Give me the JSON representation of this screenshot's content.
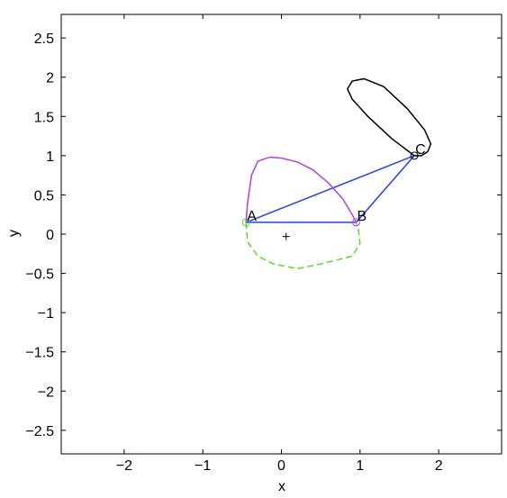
{
  "chart_data": {
    "type": "line",
    "xlabel": "x",
    "ylabel": "y",
    "xlim": [
      -2.8,
      2.8
    ],
    "ylim": [
      -2.8,
      2.8
    ],
    "xticks": [
      {
        "value": -2,
        "label": "−2"
      },
      {
        "value": -1,
        "label": "−1"
      },
      0,
      1,
      2
    ],
    "yticks": [
      {
        "value": -2.5,
        "label": "−2.5"
      },
      {
        "value": -2,
        "label": "−2"
      },
      {
        "value": -1.5,
        "label": "−1.5"
      },
      {
        "value": -1,
        "label": "−1"
      },
      {
        "value": -0.5,
        "label": "−0.5"
      },
      0,
      0.5,
      1,
      1.5,
      2,
      2.5
    ],
    "grid": false,
    "series": [
      {
        "color": "#1f3fff",
        "dash": "solid",
        "x": [
          -0.45,
          0.95,
          1.69,
          -0.45
        ],
        "values": [
          0.15,
          0.15,
          1.0,
          0.15
        ]
      },
      {
        "color": "#b040e0",
        "dash": "solid",
        "x": [
          -0.45,
          -0.43,
          -0.38,
          -0.3,
          -0.15,
          0.0,
          0.2,
          0.4,
          0.6,
          0.78,
          0.9,
          0.95
        ],
        "values": [
          0.15,
          0.4,
          0.75,
          0.93,
          0.98,
          0.97,
          0.92,
          0.82,
          0.65,
          0.45,
          0.25,
          0.15
        ]
      },
      {
        "color": "#55dd22",
        "dash": "dashed",
        "x": [
          -0.45,
          -0.43,
          -0.3,
          -0.1,
          0.2,
          0.5,
          0.9,
          1.0,
          0.98,
          0.95
        ],
        "values": [
          0.15,
          -0.1,
          -0.28,
          -0.38,
          -0.44,
          -0.38,
          -0.28,
          -0.12,
          0.05,
          0.15
        ]
      },
      {
        "color": "#000000",
        "dash": "solid",
        "x": [
          1.69,
          1.4,
          1.1,
          0.9,
          0.84,
          0.9,
          1.05,
          1.3,
          1.6,
          1.82,
          1.9,
          1.86,
          1.78,
          1.69
        ],
        "values": [
          1.0,
          1.22,
          1.5,
          1.72,
          1.85,
          1.95,
          1.98,
          1.88,
          1.6,
          1.33,
          1.15,
          1.05,
          1.0,
          1.0
        ]
      }
    ],
    "points": [
      {
        "label": "A",
        "x": -0.45,
        "y": 0.15,
        "color": "#55dd22"
      },
      {
        "label": "B",
        "x": 0.95,
        "y": 0.15,
        "color": "#b040e0"
      },
      {
        "label": "C",
        "x": 1.69,
        "y": 1.0,
        "color": "#000000"
      }
    ],
    "center": {
      "x": 0.06,
      "y": -0.03
    }
  }
}
